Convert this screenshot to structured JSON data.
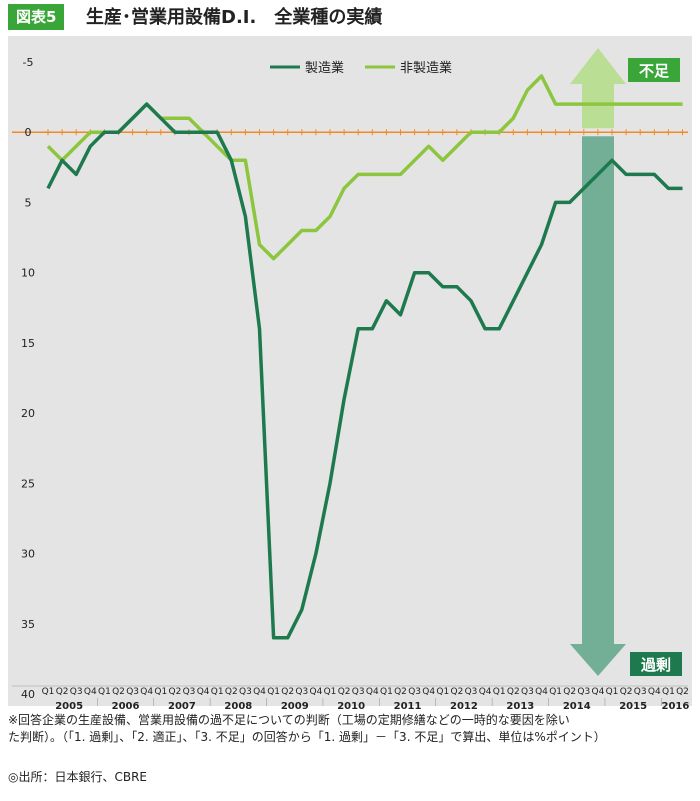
{
  "header": {
    "badge": "図表5",
    "title": "生産･営業用設備D.I.　全業種の実績"
  },
  "legend": {
    "manufacturing": "製造業",
    "non_manufacturing": "非製造業"
  },
  "annotations": {
    "shortage": "不足",
    "excess": "過剰"
  },
  "footnote": {
    "line1": "※回答企業の生産設備、営業用設備の過不足についての判断（工場の定期修繕などの一時的な要因を除い",
    "line2": "た判断）。（「1. 過剰」、「2. 適正」、「3. 不足」の回答から「1. 過剰」－「3. 不足」で算出、単位は%ポイント）"
  },
  "source": "◎出所：日本銀行、CBRE",
  "colors": {
    "manufacturing": "#1e7a4e",
    "non_manufacturing": "#8cc63f",
    "zero_line": "#f08a24",
    "shortage_arrow": "#b5dd8a",
    "excess_arrow": "#5fa68a",
    "badge": "#3aa63a",
    "plot_bg": "#e4e4e4"
  },
  "chart_data": {
    "type": "line",
    "title": "生産･営業用設備D.I.　全業種の実績",
    "y_inverted": true,
    "ylim": [
      -5,
      40
    ],
    "yticks": [
      -5,
      0,
      5,
      10,
      15,
      20,
      25,
      30,
      35,
      40
    ],
    "quarter_labels": [
      "Q1",
      "Q2",
      "Q3",
      "Q4",
      "Q1",
      "Q2",
      "Q3",
      "Q4",
      "Q1",
      "Q2",
      "Q3",
      "Q4",
      "Q1",
      "Q2",
      "Q3",
      "Q4",
      "Q1",
      "Q2",
      "Q3",
      "Q4",
      "Q1",
      "Q2",
      "Q3",
      "Q4",
      "Q1",
      "Q2",
      "Q3",
      "Q4",
      "Q1",
      "Q2",
      "Q3",
      "Q4",
      "Q1",
      "Q2",
      "Q3",
      "Q4",
      "Q1",
      "Q2",
      "Q3",
      "Q4",
      "Q1",
      "Q2",
      "Q3",
      "Q4",
      "Q1",
      "Q2"
    ],
    "years": [
      "2005",
      "2006",
      "2007",
      "2008",
      "2009",
      "2010",
      "2011",
      "2012",
      "2013",
      "2014",
      "2015",
      "2016"
    ],
    "series": [
      {
        "name": "製造業",
        "values": [
          4,
          2,
          3,
          1,
          0,
          0,
          -1,
          -2,
          -1,
          0,
          0,
          0,
          0,
          2,
          6,
          14,
          36,
          36,
          34,
          30,
          25,
          19,
          14,
          14,
          12,
          13,
          10,
          10,
          11,
          11,
          12,
          14,
          14,
          12,
          10,
          8,
          5,
          5,
          4,
          3,
          2,
          3,
          3,
          3,
          4,
          4
        ]
      },
      {
        "name": "非製造業",
        "values": [
          1,
          2,
          1,
          0,
          0,
          0,
          -1,
          -2,
          -1,
          -1,
          -1,
          0,
          1,
          2,
          2,
          8,
          9,
          8,
          7,
          7,
          6,
          4,
          3,
          3,
          3,
          3,
          2,
          1,
          2,
          1,
          0,
          0,
          0,
          -1,
          -3,
          -4,
          -2,
          -2,
          -2,
          -2,
          -2,
          -2,
          -2,
          -2,
          -2,
          -2
        ]
      }
    ]
  }
}
